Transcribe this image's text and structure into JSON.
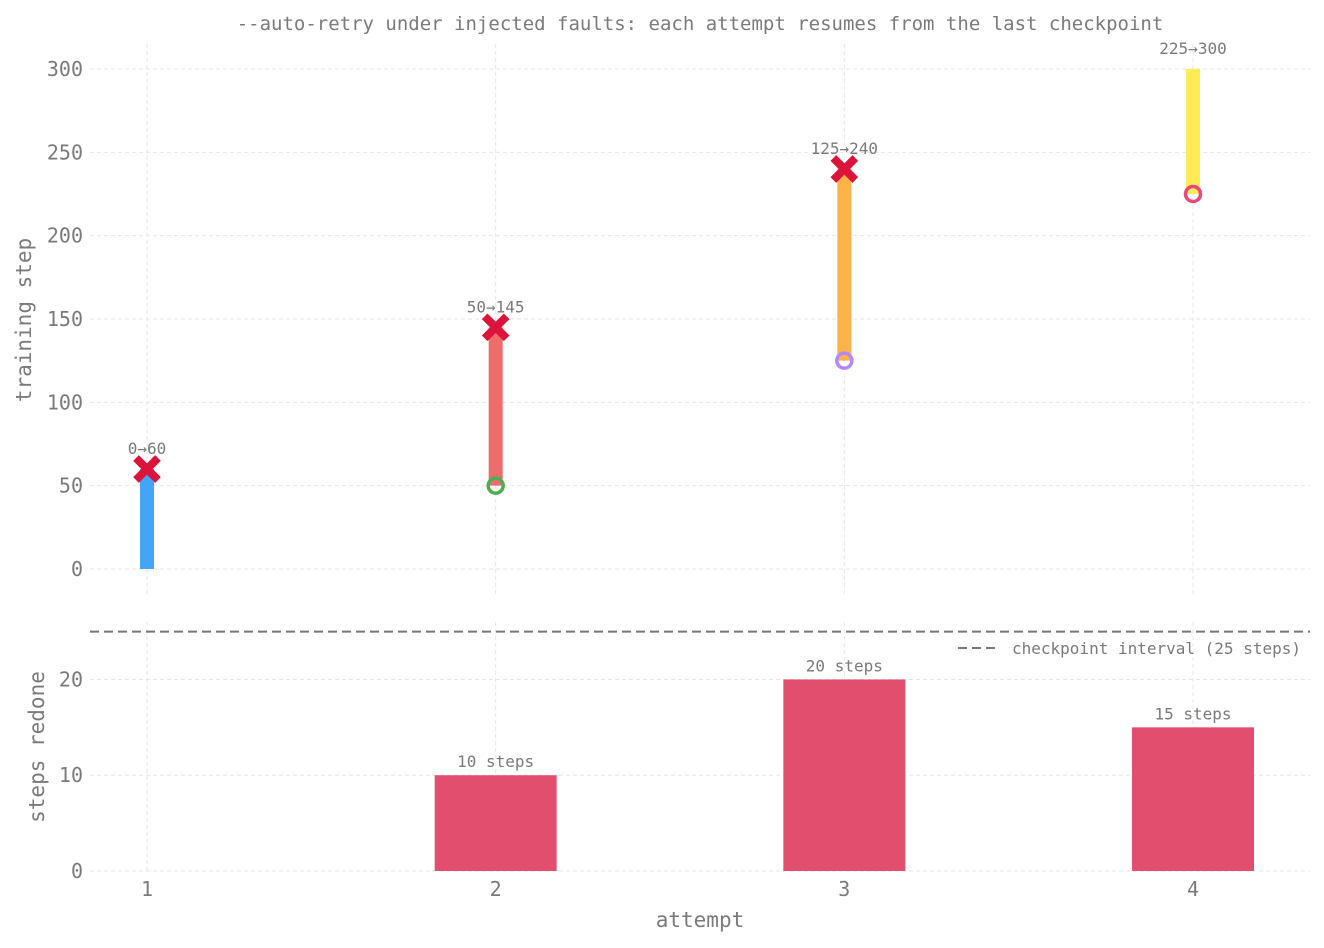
{
  "chart_data": [
    {
      "type": "range",
      "title": "--auto-retry under injected faults: each attempt resumes from the last checkpoint",
      "ylabel": "training step",
      "xlabel": "",
      "ylim": [
        -15,
        315
      ],
      "yticks": [
        0,
        50,
        100,
        150,
        200,
        250,
        300
      ],
      "grid": true,
      "categories": [
        1,
        2,
        3,
        4
      ],
      "segments": [
        {
          "attempt": 1,
          "start": 0,
          "end": 60,
          "label": "0→60",
          "color": "#42a5f5",
          "fault": true,
          "resume_marker": false,
          "resume_color": ""
        },
        {
          "attempt": 2,
          "start": 50,
          "end": 145,
          "label": "50→145",
          "color": "#ef6c6c",
          "fault": true,
          "resume_marker": true,
          "resume_color": "#4caf50"
        },
        {
          "attempt": 3,
          "start": 125,
          "end": 240,
          "label": "125→240",
          "color": "#ffb14a",
          "fault": true,
          "resume_marker": true,
          "resume_color": "#b388ff"
        },
        {
          "attempt": 4,
          "start": 225,
          "end": 300,
          "label": "225→300",
          "color": "#ffeb55",
          "fault": false,
          "resume_marker": true,
          "resume_color": "#e8487a"
        }
      ],
      "fault_color": "#dc143c"
    },
    {
      "type": "bar",
      "xlabel": "attempt",
      "ylabel": "steps redone",
      "ylim": [
        0,
        26
      ],
      "yticks": [
        0,
        10,
        20
      ],
      "grid": true,
      "categories": [
        1,
        2,
        3,
        4
      ],
      "values": [
        0,
        10,
        20,
        15
      ],
      "bar_labels": [
        "",
        "10 steps",
        "20 steps",
        "15 steps"
      ],
      "bar_color": "#e24e6e",
      "reference_line": {
        "value": 25,
        "label": "checkpoint interval (25 steps)",
        "color": "#777777"
      },
      "legend_placement": "top-right"
    }
  ]
}
